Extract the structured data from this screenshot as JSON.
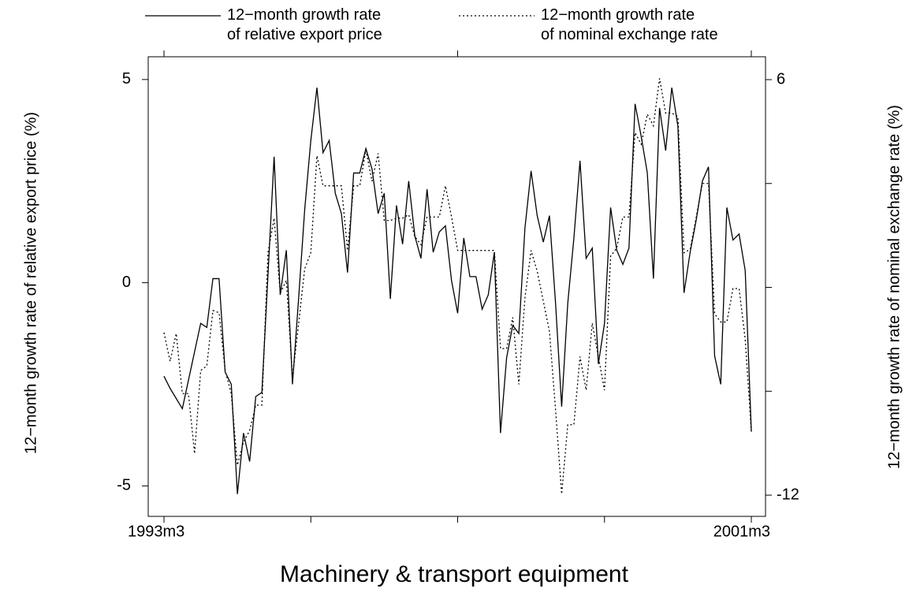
{
  "chart_data": {
    "type": "line",
    "title": "Machinery & transport equipment",
    "ylabel": "12−month growth rate of relative export price (%)",
    "y2label": "12−month growth rate of nominal exchange rate (%)",
    "categories": [
      "1993m3",
      null,
      null,
      null,
      null,
      null,
      null,
      null,
      null,
      null,
      null,
      null,
      null,
      null,
      null,
      null,
      null,
      null,
      null,
      null,
      null,
      null,
      null,
      null,
      null,
      null,
      null,
      null,
      null,
      null,
      null,
      null,
      null,
      null,
      null,
      null,
      null,
      null,
      null,
      null,
      null,
      null,
      null,
      null,
      null,
      null,
      null,
      null,
      null,
      null,
      null,
      null,
      null,
      null,
      null,
      null,
      null,
      null,
      null,
      null,
      null,
      null,
      null,
      null,
      null,
      null,
      null,
      null,
      null,
      null,
      null,
      null,
      null,
      null,
      null,
      null,
      null,
      null,
      null,
      null,
      null,
      null,
      null,
      null,
      null,
      null,
      null,
      null,
      null,
      null,
      null,
      null,
      null,
      null,
      null,
      null,
      "2001m3"
    ],
    "xticks": [
      0,
      24,
      48,
      72,
      96
    ],
    "ylim": [
      -5.75,
      5.56
    ],
    "yticks": [
      -5,
      0,
      5
    ],
    "y2lim": [
      -12.92,
      6.99
    ],
    "y2ticks": [
      -12,
      6
    ],
    "y2minor_ticks": [
      -7.5,
      -3,
      1.5
    ],
    "series": [
      {
        "name": "12−month growth rate\nof relative export price",
        "color": "#000000",
        "dash": "solid",
        "values": [
          -2.3,
          -2.6,
          -2.85,
          -3.1,
          -2.4,
          -1.7,
          -1.0,
          -1.1,
          0.1,
          0.1,
          -2.2,
          -2.5,
          -5.2,
          -3.7,
          -4.4,
          -2.8,
          -2.7,
          0.2,
          3.1,
          -0.3,
          0.8,
          -2.5,
          -0.4,
          1.8,
          3.5,
          4.8,
          3.2,
          3.5,
          2.2,
          1.7,
          0.25,
          2.7,
          2.7,
          3.3,
          2.8,
          1.7,
          2.2,
          -0.4,
          1.9,
          0.95,
          2.5,
          1.15,
          0.6,
          2.3,
          0.75,
          1.25,
          1.4,
          0.05,
          -0.75,
          1.1,
          0.15,
          0.15,
          -0.65,
          -0.3,
          0.75,
          -3.7,
          -1.85,
          -1.05,
          -1.25,
          1.35,
          2.75,
          1.65,
          1.0,
          1.65,
          -0.5,
          -3.05,
          -0.5,
          1.1,
          3.0,
          0.6,
          0.85,
          -2.0,
          -1.0,
          1.85,
          0.8,
          0.45,
          0.85,
          4.4,
          3.6,
          2.7,
          0.1,
          4.3,
          3.25,
          4.8,
          3.85,
          -0.25,
          0.75,
          1.55,
          2.5,
          2.85,
          -1.8,
          -2.5,
          1.85,
          1.05,
          1.2,
          0.3,
          -3.65
        ]
      },
      {
        "name": "12−month growth rate\nof nominal exchange rate",
        "color": "#000000",
        "dash": "dotted",
        "axis": "y2",
        "values": [
          -4.96,
          -6.2,
          -5.0,
          -7.6,
          -7.6,
          -10.2,
          -6.6,
          -6.4,
          -4.0,
          -4.1,
          -6.6,
          -7.6,
          -10.7,
          -9.7,
          -9.2,
          -8.1,
          -8.1,
          -1.5,
          0,
          -3.25,
          -2.7,
          -6.9,
          -4.6,
          -2.2,
          -1.5,
          2.7,
          1.4,
          1.4,
          1.4,
          1.4,
          -1.4,
          1.4,
          1.4,
          2.95,
          1.6,
          2.8,
          -0.1,
          -0.1,
          0.0,
          0.0,
          0.15,
          -0.8,
          -1.15,
          0.05,
          0.05,
          0.05,
          1.4,
          0.05,
          -1.4,
          -1.4,
          -1.4,
          -1.4,
          -1.4,
          -1.4,
          -1.4,
          -5.65,
          -5.65,
          -4.3,
          -7.2,
          -3.45,
          -1.4,
          -2.3,
          -3.6,
          -4.9,
          -8.3,
          -11.95,
          -8.95,
          -8.95,
          -6.0,
          -7.45,
          -4.55,
          -6.0,
          -7.45,
          -1.65,
          -1.3,
          0.05,
          0.05,
          3.7,
          3.2,
          4.5,
          4.0,
          6.05,
          4.55,
          4.55,
          4.4,
          -1.5,
          -1.35,
          0.05,
          1.5,
          1.5,
          -4.15,
          -4.5,
          -4.5,
          -3.05,
          -3.05,
          -5.25,
          -9.25
        ]
      }
    ]
  }
}
